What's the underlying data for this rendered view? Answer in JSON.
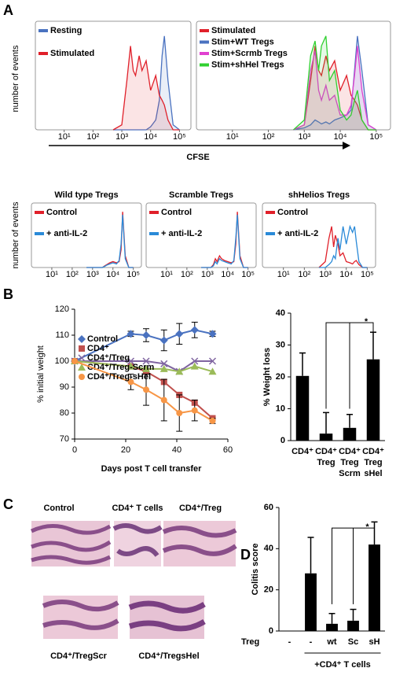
{
  "panel_labels": [
    "A",
    "B",
    "C",
    "D"
  ],
  "histology": {
    "labels": [
      "Control",
      "CD4⁺ T cells",
      "CD4⁺/Treg",
      "CD4⁺/TregScr",
      "CD4⁺/TregsHel"
    ]
  },
  "chart_data": [
    {
      "type": "flow",
      "y_label": "number of events",
      "x_label": "CFSE",
      "log_x": true,
      "fill": true,
      "legend": "upper left",
      "x": [
        500,
        1000,
        1500,
        2000,
        2500,
        3000,
        4000,
        5000,
        7000,
        10000,
        15000,
        20000,
        25000,
        30000,
        40000,
        60000,
        100000
      ],
      "xlim": [
        1,
        250000
      ],
      "ylim": [
        0,
        110
      ],
      "xticks": [
        {
          "value": 10,
          "label": "10¹"
        },
        {
          "value": 100,
          "label": "10²"
        },
        {
          "value": 1000,
          "label": "10³"
        },
        {
          "value": 10000,
          "label": "10⁴"
        },
        {
          "value": 100000,
          "label": "10⁵"
        }
      ],
      "series": [
        {
          "name": "Resting",
          "color": "#4a72c0",
          "values": [
            0,
            0,
            0,
            0,
            0,
            0,
            0,
            0,
            0,
            3,
            10,
            30,
            75,
            95,
            50,
            5,
            0
          ]
        },
        {
          "name": "Stimulated",
          "color": "#e0202a",
          "values": [
            0,
            5,
            50,
            85,
            60,
            55,
            75,
            60,
            70,
            40,
            55,
            35,
            30,
            25,
            10,
            0,
            0
          ]
        }
      ]
    },
    {
      "type": "flow",
      "log_x": true,
      "fill": true,
      "legend": "upper left",
      "x": [
        500,
        1000,
        1500,
        2000,
        2500,
        3000,
        4000,
        5000,
        7000,
        10000,
        15000,
        20000,
        25000,
        30000,
        40000,
        60000,
        100000
      ],
      "xlim": [
        1,
        250000
      ],
      "ylim": [
        0,
        110
      ],
      "xticks": [
        {
          "value": 10,
          "label": "10¹"
        },
        {
          "value": 100,
          "label": "10²"
        },
        {
          "value": 1000,
          "label": "10³"
        },
        {
          "value": 10000,
          "label": "10⁴"
        },
        {
          "value": 100000,
          "label": "10⁵"
        }
      ],
      "series": [
        {
          "name": "Stimulated",
          "color": "#e0202a",
          "values": [
            0,
            5,
            50,
            85,
            60,
            55,
            75,
            60,
            70,
            40,
            55,
            35,
            30,
            25,
            10,
            0,
            0
          ]
        },
        {
          "name": "Stim+WT Tregs",
          "color": "#4a72c0",
          "values": [
            0,
            2,
            5,
            10,
            8,
            6,
            8,
            6,
            10,
            12,
            15,
            20,
            60,
            95,
            60,
            5,
            0
          ]
        },
        {
          "name": "Stim+Scrmb Tregs",
          "color": "#e040d0",
          "values": [
            0,
            5,
            60,
            80,
            40,
            30,
            45,
            30,
            35,
            15,
            15,
            25,
            55,
            85,
            40,
            5,
            0
          ]
        },
        {
          "name": "Stim+shHel Tregs",
          "color": "#30d030",
          "values": [
            0,
            10,
            75,
            90,
            60,
            85,
            95,
            50,
            60,
            20,
            10,
            15,
            30,
            40,
            10,
            0,
            0
          ]
        }
      ]
    },
    {
      "type": "flow",
      "title": "Wild type Tregs",
      "y_label": "number of events",
      "log_x": true,
      "fill": false,
      "legend": "upper left",
      "x": [
        500,
        1000,
        1500,
        2000,
        2500,
        3000,
        4000,
        5000,
        7000,
        10000,
        15000,
        20000,
        25000,
        30000,
        40000,
        60000,
        100000
      ],
      "xlim": [
        1,
        250000
      ],
      "ylim": [
        0,
        110
      ],
      "xticks": [
        {
          "value": 10,
          "label": "10¹"
        },
        {
          "value": 100,
          "label": "10²"
        },
        {
          "value": 1000,
          "label": "10³"
        },
        {
          "value": 10000,
          "label": "10⁴"
        },
        {
          "value": 100000,
          "label": "10⁵"
        }
      ],
      "series": [
        {
          "name": "Control",
          "color": "#e0202a",
          "values": [
            0,
            0,
            0,
            0,
            0,
            0,
            3,
            5,
            8,
            10,
            8,
            10,
            30,
            95,
            20,
            0,
            0
          ]
        },
        {
          "name": "+ anti-IL-2",
          "color": "#2a8ad8",
          "values": [
            0,
            0,
            0,
            0,
            0,
            0,
            2,
            4,
            6,
            8,
            6,
            12,
            40,
            90,
            15,
            0,
            0
          ]
        }
      ]
    },
    {
      "type": "flow",
      "title": "Scramble Tregs",
      "log_x": true,
      "fill": false,
      "legend": "upper left",
      "x": [
        500,
        1000,
        1500,
        2000,
        2500,
        3000,
        4000,
        5000,
        7000,
        10000,
        15000,
        20000,
        25000,
        30000,
        40000,
        60000,
        100000
      ],
      "xlim": [
        1,
        250000
      ],
      "ylim": [
        0,
        110
      ],
      "xticks": [
        {
          "value": 10,
          "label": "10¹"
        },
        {
          "value": 100,
          "label": "10²"
        },
        {
          "value": 1000,
          "label": "10³"
        },
        {
          "value": 10000,
          "label": "10⁴"
        },
        {
          "value": 100000,
          "label": "10⁵"
        }
      ],
      "series": [
        {
          "name": "Control",
          "color": "#e0202a",
          "values": [
            0,
            0,
            0,
            5,
            15,
            10,
            20,
            15,
            12,
            10,
            8,
            10,
            40,
            95,
            20,
            0,
            0
          ]
        },
        {
          "name": "+ anti-IL-2",
          "color": "#2a8ad8",
          "values": [
            0,
            0,
            0,
            3,
            10,
            6,
            15,
            12,
            10,
            8,
            6,
            12,
            50,
            90,
            15,
            0,
            0
          ]
        }
      ]
    },
    {
      "type": "flow",
      "title": "shHelios Tregs",
      "log_x": true,
      "fill": false,
      "legend": "upper left",
      "x": [
        500,
        1000,
        1500,
        2000,
        2500,
        3000,
        4000,
        5000,
        7000,
        10000,
        15000,
        20000,
        25000,
        30000,
        40000,
        60000,
        100000
      ],
      "xlim": [
        1,
        250000
      ],
      "ylim": [
        0,
        110
      ],
      "xticks": [
        {
          "value": 10,
          "label": "10¹"
        },
        {
          "value": 100,
          "label": "10²"
        },
        {
          "value": 1000,
          "label": "10³"
        },
        {
          "value": 10000,
          "label": "10⁴"
        },
        {
          "value": 100000,
          "label": "10⁵"
        }
      ],
      "series": [
        {
          "name": "Control",
          "color": "#e0202a",
          "values": [
            0,
            10,
            50,
            70,
            35,
            55,
            40,
            20,
            25,
            10,
            8,
            6,
            10,
            12,
            5,
            0,
            0
          ]
        },
        {
          "name": "+ anti-IL-2",
          "color": "#2a8ad8",
          "values": [
            0,
            0,
            5,
            10,
            20,
            15,
            50,
            30,
            70,
            40,
            70,
            60,
            70,
            45,
            10,
            0,
            0
          ]
        }
      ]
    },
    {
      "type": "line",
      "x_label": "Days post T cell transfer",
      "y_label": "% initial weight",
      "legend": "left",
      "x": [
        0,
        22,
        28,
        35,
        41,
        47,
        54
      ],
      "xlim": [
        0,
        60
      ],
      "xticks": [
        0,
        20,
        40,
        60
      ],
      "ylim": [
        70,
        120
      ],
      "yticks": [
        70,
        80,
        90,
        100,
        110,
        120
      ],
      "series": [
        {
          "name": "Control",
          "color": "#4a72c0",
          "marker": "diamond",
          "values": [
            100,
            110.5,
            110,
            108,
            110.5,
            112,
            110.5
          ],
          "errors": [
            0,
            1,
            2.5,
            4,
            4,
            3,
            1
          ]
        },
        {
          "name": "CD4⁺",
          "color": "#c0504d",
          "marker": "square",
          "values": [
            100,
            98,
            96,
            92,
            87,
            84,
            78
          ]
        },
        {
          "name": "CD4⁺/Treg",
          "color": "#7f64a0",
          "marker": "x",
          "values": [
            100,
            100,
            100,
            99,
            96,
            100,
            100
          ]
        },
        {
          "name": "CD4⁺/Treg-Scrm",
          "color": "#9bbb59",
          "marker": "triangle",
          "values": [
            100,
            98,
            97,
            97,
            96,
            98,
            96
          ]
        },
        {
          "name": "CD4⁺/Treg-sHel",
          "color": "#f79646",
          "marker": "circle",
          "values": [
            100,
            92,
            89,
            85,
            80,
            81,
            77
          ],
          "errors": [
            0,
            3,
            6,
            8,
            7,
            4,
            1
          ]
        }
      ]
    },
    {
      "type": "bar",
      "y_label": "% Weight loss",
      "color": "#000000",
      "annotation": "*",
      "categories": [
        "CD4⁺",
        "CD4⁺\nTreg",
        "CD4⁺\nTreg\nScrm",
        "CD4⁺\nTreg\nsHel"
      ],
      "values": [
        20.3,
        2.2,
        4,
        25.5
      ],
      "errors": [
        7.2,
        6.6,
        4.2,
        8.5
      ],
      "ylim": [
        0,
        40
      ],
      "yticks": [
        0,
        10,
        20,
        30,
        40
      ]
    },
    {
      "type": "bar",
      "y_label": "Colitis  score",
      "color": "#000000",
      "annotation": "*",
      "row_label": "Treg",
      "group_label": "+CD4⁺ T cells",
      "categories": [
        "-",
        "-",
        "wt",
        "Sc",
        "sH"
      ],
      "values": [
        0,
        28,
        3.5,
        5,
        42
      ],
      "errors": [
        null,
        17.5,
        5,
        5.5,
        11
      ],
      "ylim": [
        0,
        60
      ],
      "yticks": [
        0,
        20,
        40,
        60
      ]
    }
  ]
}
